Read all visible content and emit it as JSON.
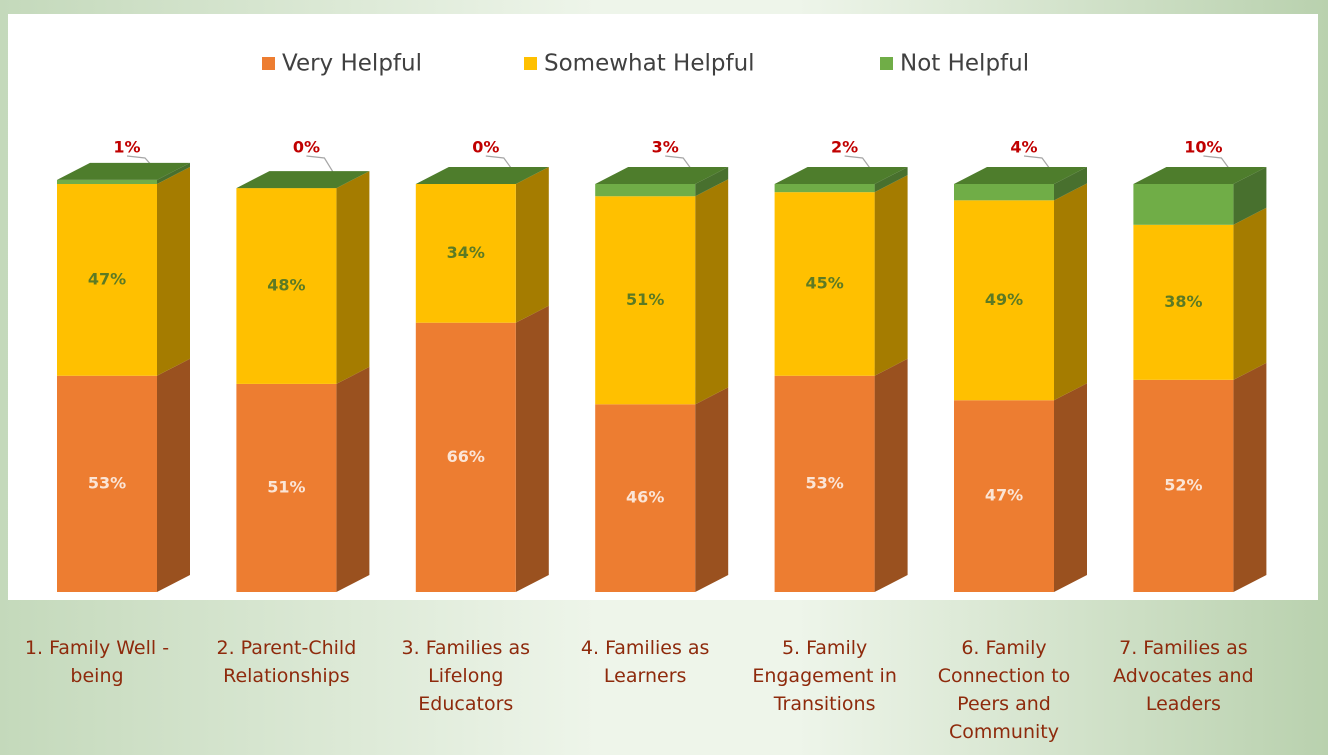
{
  "chart_data": {
    "type": "stacked_bar_3d",
    "categories": [
      "1. Family Well -being",
      "2.  Parent-Child Relationships",
      "3. Families as Lifelong Educators",
      "4. Families as Learners",
      "5. Family Engagement in Transitions",
      "6. Family Connection to Peers and Community",
      "7. Families as Advocates and Leaders"
    ],
    "series": [
      {
        "name": "Very Helpful",
        "color": "#ED7D31",
        "values": [
          53,
          51,
          66,
          46,
          53,
          47,
          52
        ],
        "value_labels": [
          "53%",
          "51%",
          "66%",
          "46%",
          "53%",
          "47%",
          "52%"
        ]
      },
      {
        "name": "Somewhat Helpful",
        "color": "#FFC000",
        "values": [
          47,
          48,
          34,
          51,
          45,
          49,
          38
        ],
        "value_labels": [
          "47%",
          "48%",
          "34%",
          "51%",
          "45%",
          "49%",
          "38%"
        ]
      },
      {
        "name": "Not Helpful",
        "color": "#70AD47",
        "values": [
          1,
          0,
          0,
          3,
          2,
          4,
          10
        ],
        "value_labels": [
          "1%",
          "0%",
          "0%",
          "3%",
          "2%",
          "4%",
          "10%"
        ]
      }
    ],
    "legend": "top"
  }
}
